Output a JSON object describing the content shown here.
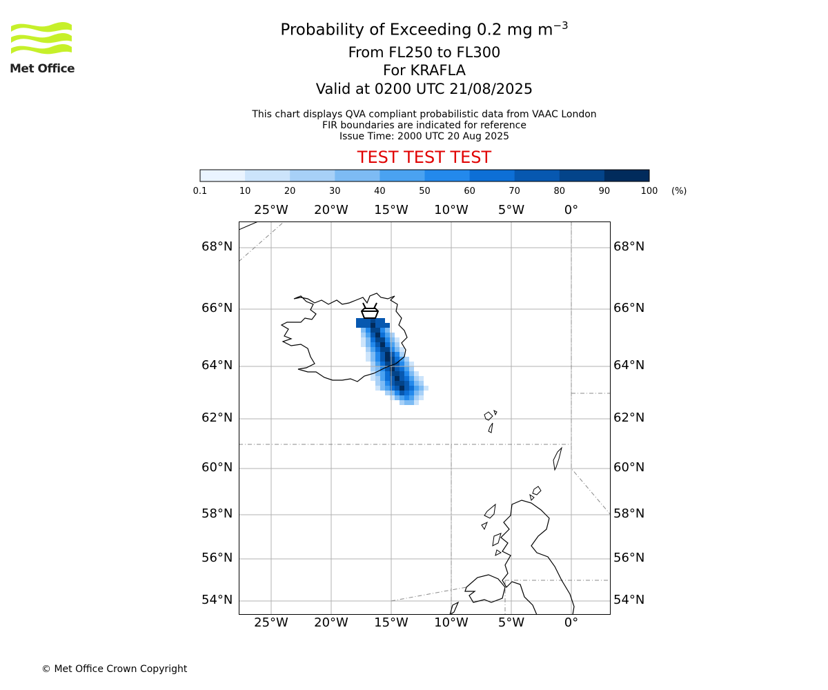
{
  "header": {
    "logo_text": "Met Office",
    "title_main": "Probability of Exceeding 0.2 mg m",
    "title_superscript": "−3",
    "flight_levels": "From FL250 to FL300",
    "volcano": "For KRAFLA",
    "valid_time": "Valid at 0200 UTC 21/08/2025"
  },
  "notes": {
    "line1": "This chart displays QVA compliant probabilistic data from VAAC London",
    "line2": "FIR boundaries are indicated for reference",
    "issue_time": "Issue Time: 2000 UTC 20 Aug 2025",
    "test_banner": "TEST TEST TEST"
  },
  "colorbar": {
    "ticks": [
      "0.1",
      "10",
      "20",
      "30",
      "40",
      "50",
      "60",
      "70",
      "80",
      "90",
      "100"
    ],
    "unit": "(%)",
    "colors": [
      "#eaf4ff",
      "#cce4fb",
      "#a7d0f7",
      "#7dbbf4",
      "#4aa2f1",
      "#2389ec",
      "#0d6fd6",
      "#0758b0",
      "#03448a",
      "#012b5c"
    ]
  },
  "map": {
    "lon_labels": [
      "25°W",
      "20°W",
      "15°W",
      "10°W",
      "5°W",
      "0°"
    ],
    "lat_labels": [
      "68°N",
      "66°N",
      "64°N",
      "62°N",
      "60°N",
      "58°N",
      "56°N",
      "54°N"
    ],
    "volcano_marker": "volcano-icon"
  },
  "footer": {
    "copyright": "© Met Office Crown Copyright"
  }
}
